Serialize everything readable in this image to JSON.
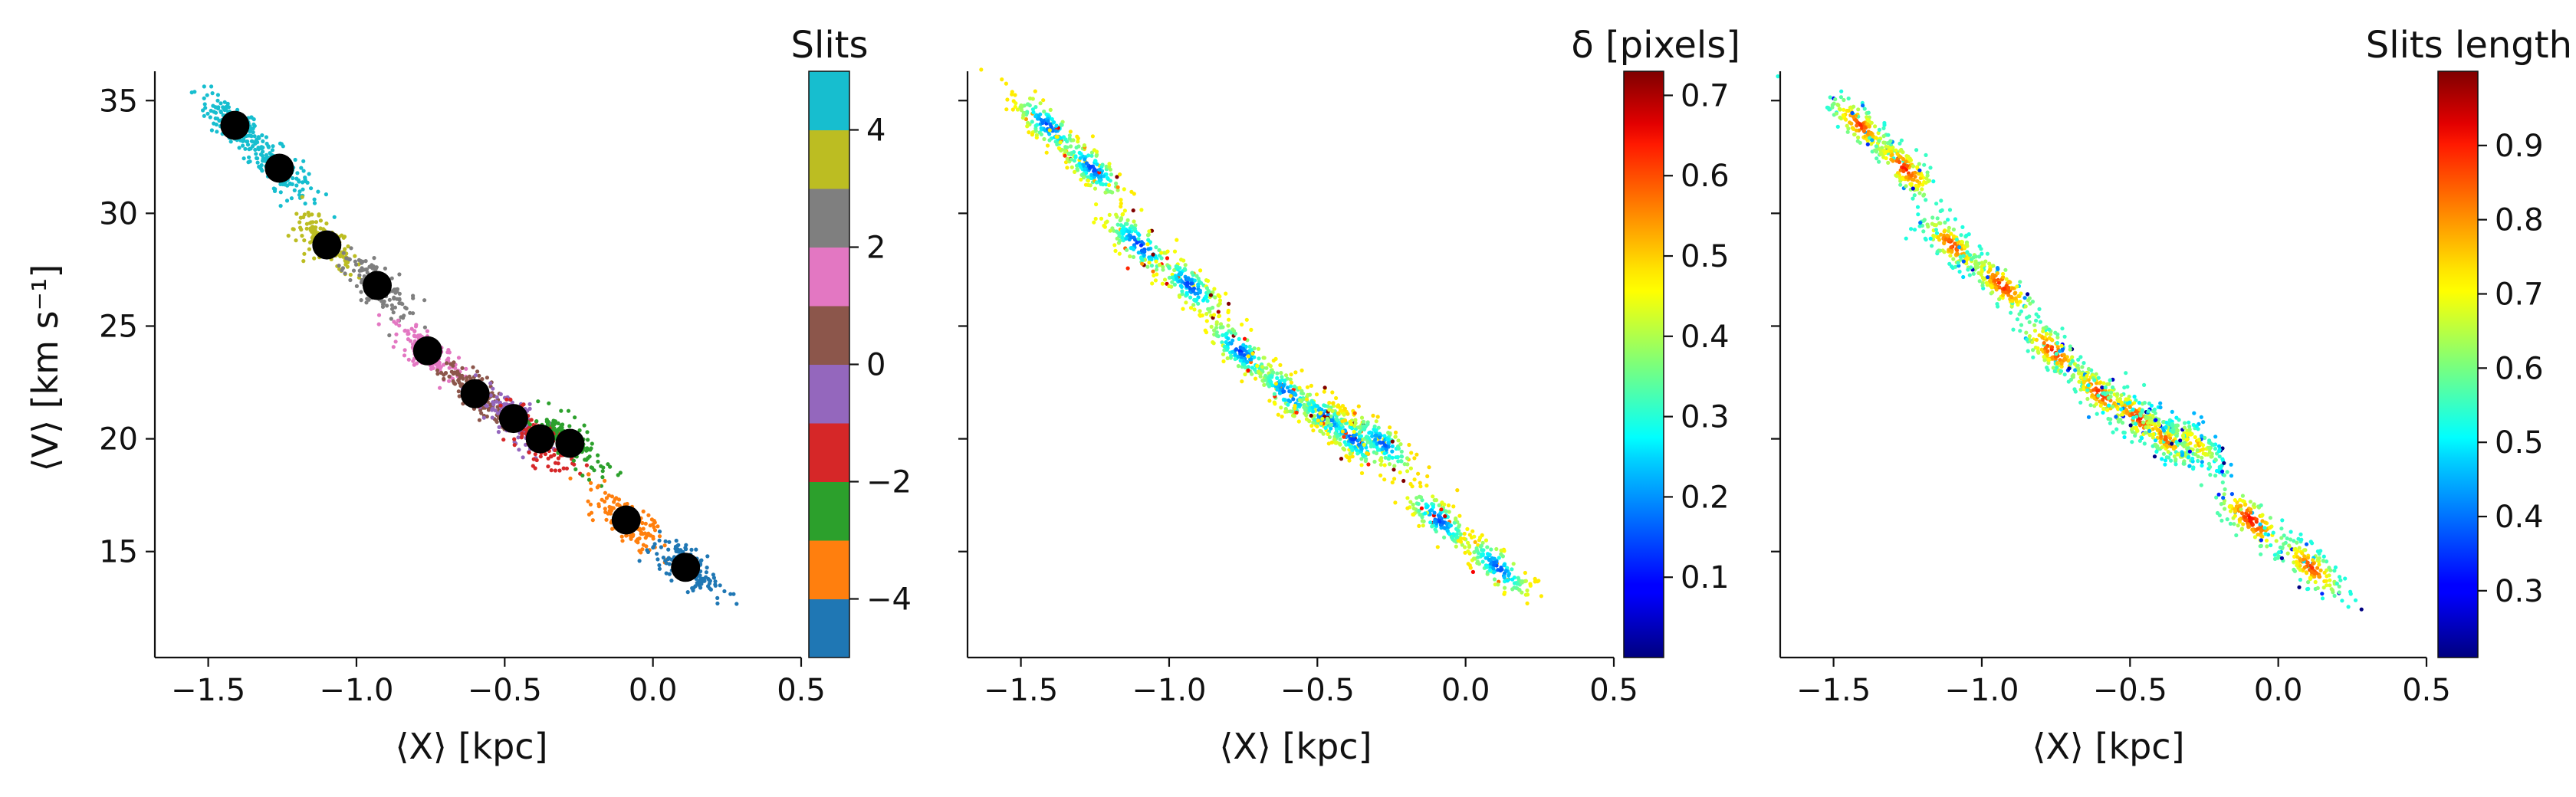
{
  "chart_data": [
    {
      "type": "scatter",
      "panel": "left",
      "xlabel": "⟨X⟩ [kpc]",
      "ylabel": "⟨V⟩ [km s⁻¹]",
      "xlim": [
        -1.68,
        0.5
      ],
      "ylim": [
        10.3,
        36.3
      ],
      "xticks": [
        -1.5,
        -1.0,
        -0.5,
        0.0,
        0.5
      ],
      "xtick_labels": [
        "−1.5",
        "−1.0",
        "−0.5",
        "0.0",
        "0.5"
      ],
      "yticks": [
        15,
        20,
        25,
        30,
        35
      ],
      "ytick_labels": [
        "15",
        "20",
        "25",
        "30",
        "35"
      ],
      "grid": false,
      "colorbar": {
        "title": "Slits",
        "range": [
          -5,
          5
        ],
        "ticks": [
          -4,
          -2,
          0,
          2,
          4
        ],
        "tick_labels": [
          "−4",
          "−2",
          "0",
          "2",
          "4"
        ],
        "colors": [
          "#1f77b4",
          "#ff7f0e",
          "#2ca02c",
          "#d62728",
          "#9467bd",
          "#8c564b",
          "#e377c2",
          "#7f7f7f",
          "#bcbd22",
          "#17becf"
        ]
      },
      "slit_centers": [
        {
          "slit": 4.5,
          "x": -1.41,
          "y": 33.9
        },
        {
          "slit": 4.5,
          "x": -1.26,
          "y": 32.0
        },
        {
          "slit": 3.5,
          "x": -1.1,
          "y": 28.6
        },
        {
          "slit": 2.5,
          "x": -0.93,
          "y": 26.8
        },
        {
          "slit": 1.5,
          "x": -0.76,
          "y": 23.9
        },
        {
          "slit": 0.5,
          "x": -0.6,
          "y": 22.0
        },
        {
          "slit": -0.5,
          "x": -0.47,
          "y": 20.9
        },
        {
          "slit": -1.5,
          "x": -0.38,
          "y": 20.0
        },
        {
          "slit": -2.5,
          "x": -0.28,
          "y": 19.8
        },
        {
          "slit": -3.5,
          "x": -0.09,
          "y": 16.4
        },
        {
          "slit": -4.5,
          "x": 0.11,
          "y": 14.3
        }
      ],
      "black_markers": [
        {
          "x": -1.41,
          "y": 33.9
        },
        {
          "x": -1.26,
          "y": 32.0
        },
        {
          "x": -1.1,
          "y": 28.6
        },
        {
          "x": -0.93,
          "y": 26.8
        },
        {
          "x": -0.76,
          "y": 23.9
        },
        {
          "x": -0.6,
          "y": 22.0
        },
        {
          "x": -0.47,
          "y": 20.9
        },
        {
          "x": -0.38,
          "y": 20.0
        },
        {
          "x": -0.28,
          "y": 19.8
        },
        {
          "x": -0.09,
          "y": 16.4
        },
        {
          "x": 0.11,
          "y": 14.3
        }
      ]
    },
    {
      "type": "scatter",
      "panel": "middle",
      "xlabel": "⟨X⟩ [kpc]",
      "xlim": [
        -1.68,
        0.5
      ],
      "ylim": [
        10.3,
        36.3
      ],
      "xticks": [
        -1.5,
        -1.0,
        -0.5,
        0.0,
        0.5
      ],
      "xtick_labels": [
        "−1.5",
        "−1.0",
        "−0.5",
        "0.0",
        "0.5"
      ],
      "yticks": [
        15,
        20,
        25,
        30,
        35
      ],
      "grid": false,
      "colorbar": {
        "title": "δ [pixels]",
        "colormap": "jet",
        "range": [
          0.0,
          0.73
        ],
        "ticks": [
          0.1,
          0.2,
          0.3,
          0.4,
          0.5,
          0.6,
          0.7
        ],
        "tick_labels": [
          "0.1",
          "0.2",
          "0.3",
          "0.4",
          "0.5",
          "0.6",
          "0.7"
        ]
      },
      "slit_centers": [
        {
          "x": -1.41,
          "y": 33.9,
          "value": 0.12
        },
        {
          "x": -1.26,
          "y": 32.0,
          "value": 0.12
        },
        {
          "x": -1.1,
          "y": 28.6,
          "value": 0.1
        },
        {
          "x": -0.93,
          "y": 26.8,
          "value": 0.11
        },
        {
          "x": -0.76,
          "y": 23.9,
          "value": 0.11
        },
        {
          "x": -0.6,
          "y": 22.0,
          "value": 0.12
        },
        {
          "x": -0.47,
          "y": 20.9,
          "value": 0.12
        },
        {
          "x": -0.38,
          "y": 20.0,
          "value": 0.12
        },
        {
          "x": -0.28,
          "y": 19.8,
          "value": 0.13
        },
        {
          "x": -0.09,
          "y": 16.4,
          "value": 0.12
        },
        {
          "x": 0.11,
          "y": 14.3,
          "value": 0.12
        }
      ]
    },
    {
      "type": "scatter",
      "panel": "right",
      "xlabel": "⟨X⟩ [kpc]",
      "xlim": [
        -1.68,
        0.5
      ],
      "ylim": [
        10.3,
        36.3
      ],
      "xticks": [
        -1.5,
        -1.0,
        -0.5,
        0.0,
        0.5
      ],
      "xtick_labels": [
        "−1.5",
        "−1.0",
        "−0.5",
        "0.0",
        "0.5"
      ],
      "yticks": [
        15,
        20,
        25,
        30,
        35
      ],
      "grid": false,
      "colorbar": {
        "title": "Slits length",
        "colormap": "jet",
        "range": [
          0.21,
          1.0
        ],
        "ticks": [
          0.3,
          0.4,
          0.5,
          0.6,
          0.7,
          0.8,
          0.9
        ],
        "tick_labels": [
          "0.3",
          "0.4",
          "0.5",
          "0.6",
          "0.7",
          "0.8",
          "0.9"
        ]
      },
      "slit_centers": [
        {
          "x": -1.41,
          "y": 33.9,
          "value": 0.88
        },
        {
          "x": -1.26,
          "y": 32.0,
          "value": 0.9
        },
        {
          "x": -1.1,
          "y": 28.6,
          "value": 0.88
        },
        {
          "x": -0.93,
          "y": 26.8,
          "value": 0.9
        },
        {
          "x": -0.76,
          "y": 23.9,
          "value": 0.9
        },
        {
          "x": -0.6,
          "y": 22.0,
          "value": 0.9
        },
        {
          "x": -0.47,
          "y": 20.9,
          "value": 0.9
        },
        {
          "x": -0.38,
          "y": 20.0,
          "value": 0.85
        },
        {
          "x": -0.28,
          "y": 19.8,
          "value": 0.8
        },
        {
          "x": -0.09,
          "y": 16.4,
          "value": 0.92
        },
        {
          "x": 0.11,
          "y": 14.3,
          "value": 0.88
        }
      ]
    }
  ]
}
